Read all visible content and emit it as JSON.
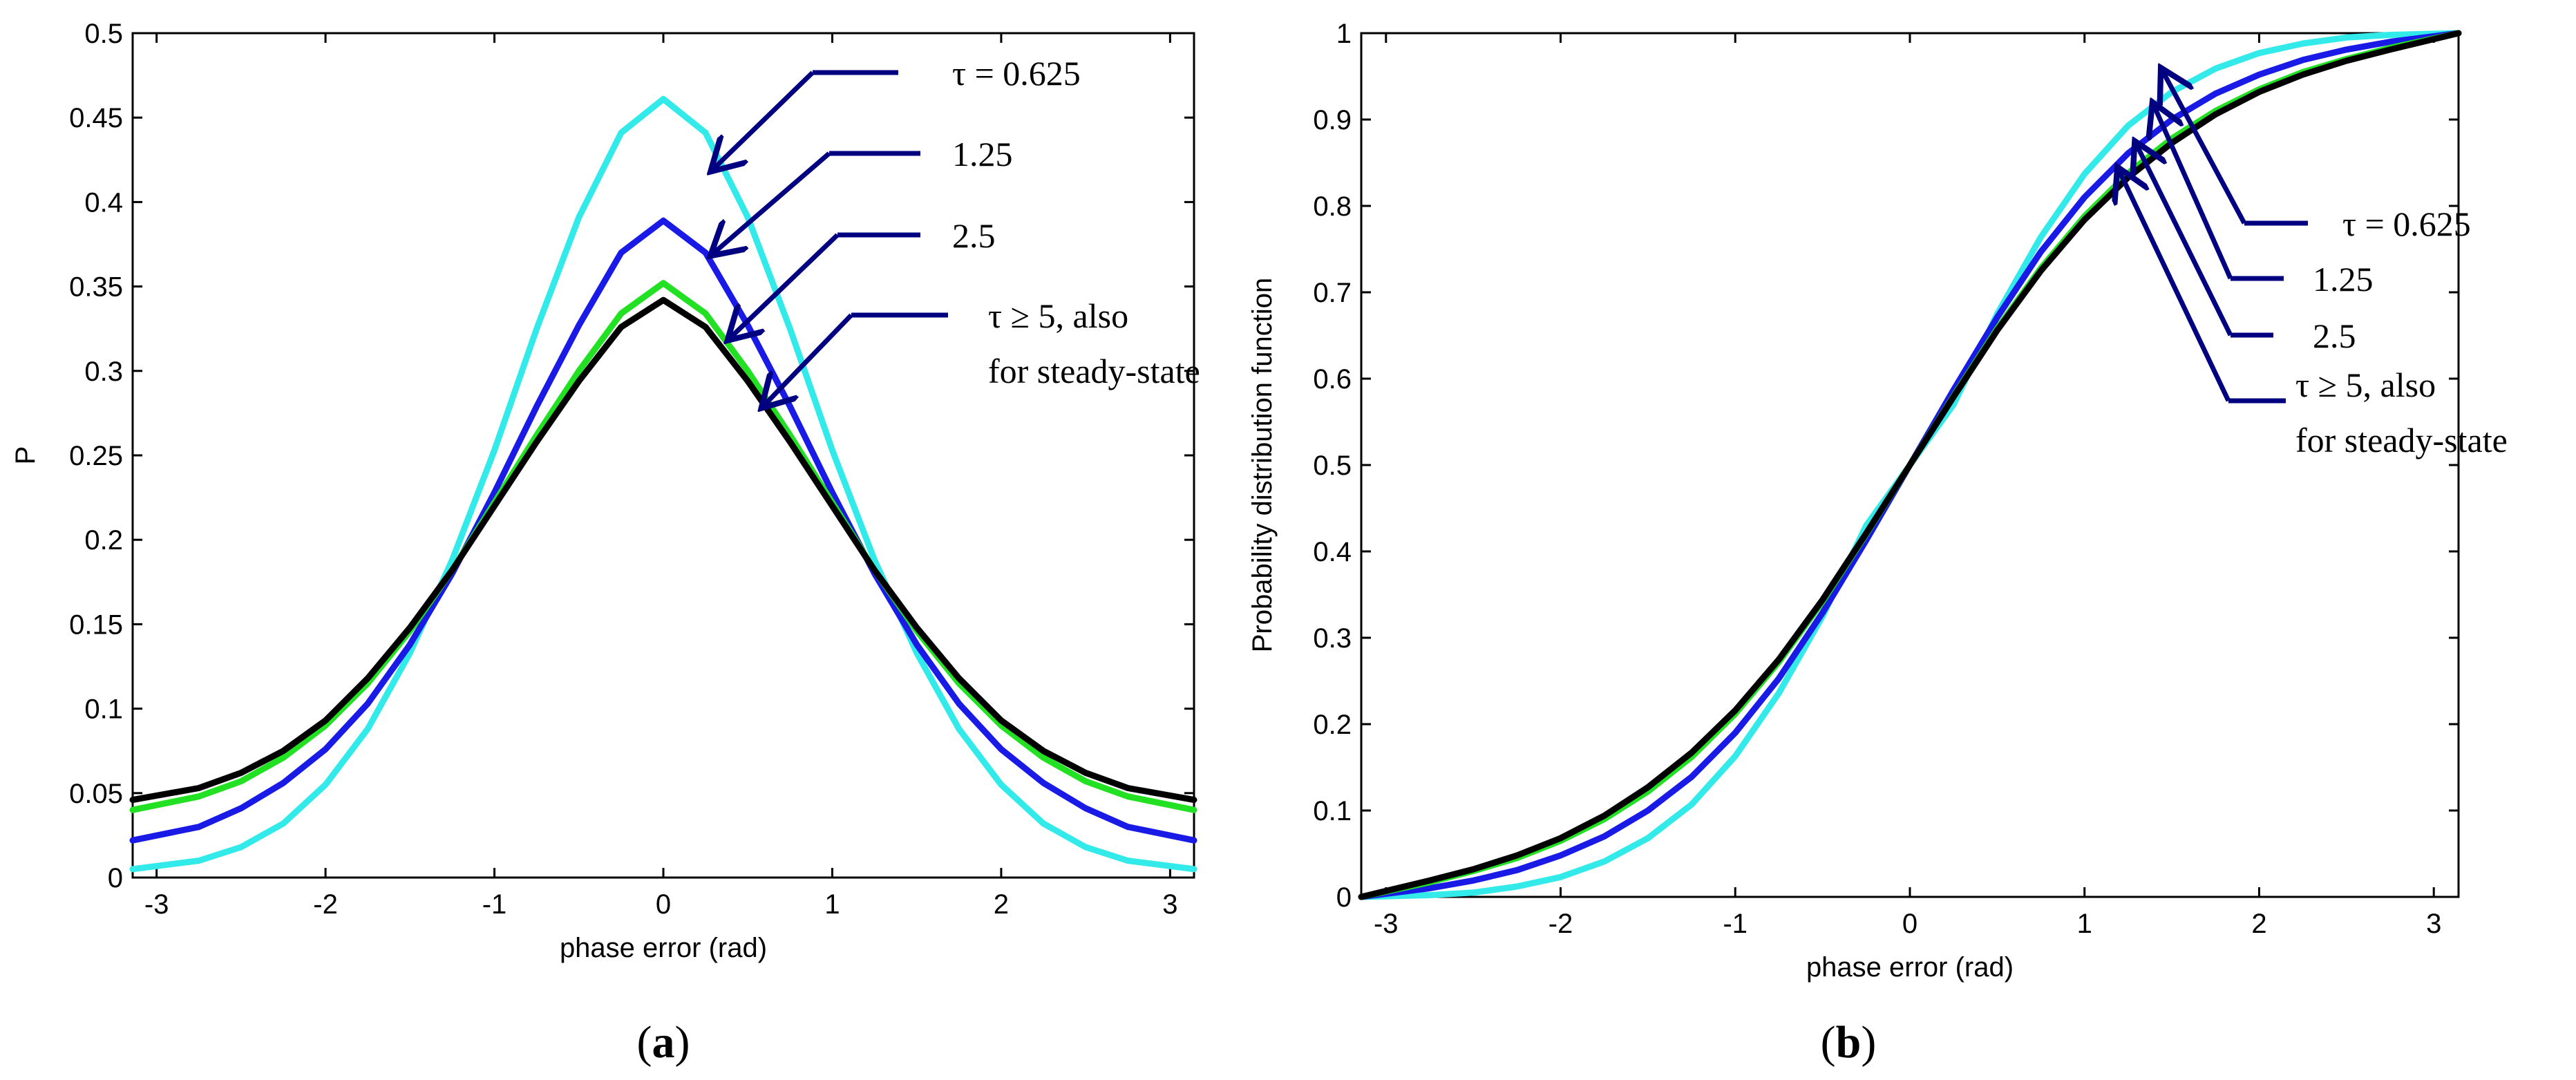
{
  "chart_data": [
    {
      "id": "a",
      "type": "line",
      "caption": "(a)",
      "caption_letter": "a",
      "xlabel": "phase error (rad)",
      "ylabel": "P",
      "title": "",
      "xlim": [
        -3.1416,
        3.1416
      ],
      "ylim": [
        0,
        0.5
      ],
      "xticks": [
        -3,
        -2,
        -1,
        0,
        1,
        2,
        3
      ],
      "xtick_labels": [
        "-3",
        "-2",
        "-1",
        "0",
        "1",
        "2",
        "3"
      ],
      "yticks": [
        0,
        0.05,
        0.1,
        0.15,
        0.2,
        0.25,
        0.3,
        0.35,
        0.4,
        0.45,
        0.5
      ],
      "ytick_labels": [
        "0",
        "0.05",
        "0.1",
        "0.15",
        "0.2",
        "0.25",
        "0.3",
        "0.35",
        "0.4",
        "0.45",
        "0.5"
      ],
      "grid": false,
      "x": [
        -3.1416,
        -2.75,
        -2.5,
        -2.25,
        -2.0,
        -1.75,
        -1.5,
        -1.25,
        -1.0,
        -0.75,
        -0.5,
        -0.25,
        0.0,
        0.25,
        0.5,
        0.75,
        1.0,
        1.25,
        1.5,
        1.75,
        2.0,
        2.25,
        2.5,
        2.75,
        3.1416
      ],
      "series": [
        {
          "name": "τ = 0.625",
          "color": "#33eaea",
          "values": [
            0.005,
            0.01,
            0.018,
            0.032,
            0.055,
            0.088,
            0.133,
            0.188,
            0.253,
            0.325,
            0.391,
            0.441,
            0.461,
            0.441,
            0.391,
            0.325,
            0.253,
            0.188,
            0.133,
            0.088,
            0.055,
            0.032,
            0.018,
            0.01,
            0.005
          ]
        },
        {
          "name": "1.25",
          "color": "#1a1ae6",
          "values": [
            0.022,
            0.03,
            0.041,
            0.056,
            0.076,
            0.103,
            0.138,
            0.18,
            0.228,
            0.279,
            0.327,
            0.37,
            0.389,
            0.37,
            0.327,
            0.279,
            0.228,
            0.18,
            0.138,
            0.103,
            0.076,
            0.056,
            0.041,
            0.03,
            0.022
          ]
        },
        {
          "name": "2.5",
          "color": "#22e022",
          "values": [
            0.04,
            0.048,
            0.057,
            0.071,
            0.09,
            0.115,
            0.146,
            0.182,
            0.222,
            0.262,
            0.3,
            0.334,
            0.352,
            0.334,
            0.3,
            0.262,
            0.222,
            0.182,
            0.146,
            0.115,
            0.09,
            0.071,
            0.057,
            0.048,
            0.04
          ]
        },
        {
          "name": "τ ≥ 5, also for steady-state",
          "color": "#000000",
          "values": [
            0.046,
            0.053,
            0.062,
            0.075,
            0.093,
            0.118,
            0.148,
            0.182,
            0.22,
            0.258,
            0.294,
            0.326,
            0.342,
            0.326,
            0.294,
            0.258,
            0.22,
            0.182,
            0.148,
            0.118,
            0.093,
            0.075,
            0.062,
            0.053,
            0.046
          ]
        }
      ],
      "annotations": [
        {
          "lines": [
            "τ = 0.625"
          ],
          "points_to": [
            0.3,
            0.42
          ]
        },
        {
          "lines": [
            "1.25"
          ],
          "points_to": [
            0.3,
            0.37
          ]
        },
        {
          "lines": [
            "2.5"
          ],
          "points_to": [
            0.4,
            0.32
          ]
        },
        {
          "lines": [
            "τ ≥ 5, also",
            "for steady-state"
          ],
          "points_to": [
            0.6,
            0.28
          ]
        }
      ]
    },
    {
      "id": "b",
      "type": "line",
      "caption": "(b)",
      "caption_letter": "b",
      "xlabel": "phase error (rad)",
      "ylabel": "Probability distribution function",
      "title": "",
      "xlim": [
        -3.1416,
        3.1416
      ],
      "ylim": [
        0,
        1
      ],
      "xticks": [
        -3,
        -2,
        -1,
        0,
        1,
        2,
        3
      ],
      "xtick_labels": [
        "-3",
        "-2",
        "-1",
        "0",
        "1",
        "2",
        "3"
      ],
      "yticks": [
        0,
        0.1,
        0.2,
        0.3,
        0.4,
        0.5,
        0.6,
        0.7,
        0.8,
        0.9,
        1
      ],
      "ytick_labels": [
        "0",
        "0.1",
        "0.2",
        "0.3",
        "0.4",
        "0.5",
        "0.6",
        "0.7",
        "0.8",
        "0.9",
        "1"
      ],
      "grid": false,
      "x": [
        -3.1416,
        -2.75,
        -2.5,
        -2.25,
        -2.0,
        -1.75,
        -1.5,
        -1.25,
        -1.0,
        -0.75,
        -0.5,
        -0.25,
        0.0,
        0.25,
        0.5,
        0.75,
        1.0,
        1.25,
        1.5,
        1.75,
        2.0,
        2.25,
        2.5,
        2.75,
        3.1416
      ],
      "series": [
        {
          "name": "τ = 0.625",
          "color": "#33eaea",
          "values": [
            0.0,
            0.002,
            0.005,
            0.012,
            0.023,
            0.041,
            0.068,
            0.107,
            0.163,
            0.236,
            0.325,
            0.43,
            0.5,
            0.57,
            0.675,
            0.764,
            0.837,
            0.893,
            0.932,
            0.959,
            0.977,
            0.988,
            0.995,
            0.998,
            1.0
          ]
        },
        {
          "name": "1.25",
          "color": "#1a1ae6",
          "values": [
            0.0,
            0.01,
            0.019,
            0.031,
            0.048,
            0.07,
            0.1,
            0.139,
            0.19,
            0.253,
            0.329,
            0.413,
            0.5,
            0.587,
            0.671,
            0.747,
            0.81,
            0.861,
            0.9,
            0.93,
            0.952,
            0.969,
            0.981,
            0.99,
            1.0
          ]
        },
        {
          "name": "2.5",
          "color": "#22e022",
          "values": [
            0.0,
            0.017,
            0.03,
            0.045,
            0.065,
            0.09,
            0.122,
            0.162,
            0.212,
            0.272,
            0.342,
            0.42,
            0.5,
            0.58,
            0.658,
            0.728,
            0.788,
            0.838,
            0.878,
            0.91,
            0.935,
            0.955,
            0.97,
            0.983,
            1.0
          ]
        },
        {
          "name": "τ ≥ 5, also for steady-state",
          "color": "#000000",
          "values": [
            0.0,
            0.019,
            0.032,
            0.048,
            0.068,
            0.094,
            0.127,
            0.167,
            0.216,
            0.275,
            0.344,
            0.421,
            0.5,
            0.579,
            0.656,
            0.725,
            0.784,
            0.833,
            0.873,
            0.906,
            0.932,
            0.952,
            0.968,
            0.981,
            1.0
          ]
        }
      ],
      "annotations": [
        {
          "lines": [
            "τ = 0.625"
          ],
          "points_to": [
            1.45,
            0.955
          ]
        },
        {
          "lines": [
            "1.25"
          ],
          "points_to": [
            1.4,
            0.915
          ]
        },
        {
          "lines": [
            "2.5"
          ],
          "points_to": [
            1.3,
            0.87
          ]
        },
        {
          "lines": [
            "τ ≥ 5, also",
            "for steady-state"
          ],
          "points_to": [
            1.2,
            0.84
          ]
        }
      ]
    }
  ]
}
